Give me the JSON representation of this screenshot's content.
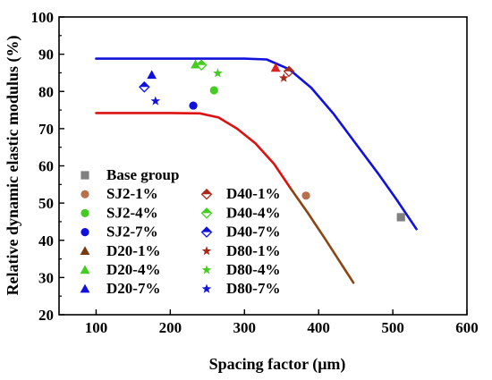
{
  "chart_data": {
    "type": "scatter",
    "xlabel": "Spacing factor (μm)",
    "ylabel": "Relative dynamic elastic modulus (%)",
    "xlim": [
      50,
      600
    ],
    "ylim": [
      20,
      100
    ],
    "xticks": [
      100,
      200,
      300,
      400,
      500,
      600
    ],
    "yticks": [
      20,
      30,
      40,
      50,
      60,
      70,
      80,
      90,
      100
    ],
    "grid": false,
    "legend_placement": "bottom-left, two columns",
    "series": [
      {
        "name": "Base group",
        "marker": "square",
        "filled": true,
        "color": "#808080",
        "points": [
          [
            511,
            46.2
          ]
        ]
      },
      {
        "name": "SJ2-1%",
        "marker": "circle",
        "filled": true,
        "color": "#b8704a",
        "points": [
          [
            383,
            52
          ]
        ]
      },
      {
        "name": "SJ2-4%",
        "marker": "circle",
        "filled": true,
        "color": "#44cc22",
        "points": [
          [
            259,
            80.3
          ]
        ]
      },
      {
        "name": "SJ2-7%",
        "marker": "circle",
        "filled": true,
        "color": "#1111dd",
        "points": [
          [
            231,
            76.2
          ]
        ]
      },
      {
        "name": "D20-1%",
        "marker": "triangle",
        "filled": true,
        "color": "#7a3a10",
        "points": []
      },
      {
        "name": "D20-4%",
        "marker": "triangle",
        "filled": true,
        "color": "#44cc22",
        "points": [
          [
            234,
            87.2
          ]
        ]
      },
      {
        "name": "D20-7%",
        "marker": "triangle",
        "filled": true,
        "color": "#1111dd",
        "points": [
          [
            175,
            84.4
          ]
        ]
      },
      {
        "name": "D40-1%",
        "marker": "diamond-half",
        "filled": false,
        "color": "#aa2a1a",
        "points": [
          [
            360,
            85.4
          ]
        ]
      },
      {
        "name": "D40-4%",
        "marker": "diamond-half",
        "filled": false,
        "color": "#44cc22",
        "points": [
          [
            242,
            87.1
          ]
        ]
      },
      {
        "name": "D40-7%",
        "marker": "diamond-half",
        "filled": false,
        "color": "#1111dd",
        "points": [
          [
            165,
            81.2
          ]
        ]
      },
      {
        "name": "D80-1%",
        "marker": "star",
        "filled": true,
        "color": "#aa2a1a",
        "points": [
          [
            353,
            83.6
          ]
        ]
      },
      {
        "name": "D80-4%",
        "marker": "star",
        "filled": true,
        "color": "#44cc22",
        "points": [
          [
            264,
            84.9
          ]
        ]
      },
      {
        "name": "D80-7%",
        "marker": "star",
        "filled": true,
        "color": "#1111dd",
        "points": [
          [
            180,
            77.4
          ]
        ]
      },
      {
        "name": "",
        "marker": "triangle",
        "filled": true,
        "color": "#dd2222",
        "points": [
          [
            342,
            86.3
          ]
        ]
      }
    ],
    "curves": [
      {
        "color": "#1111dd",
        "points": [
          [
            100,
            88.8
          ],
          [
            200,
            88.8
          ],
          [
            300,
            88.8
          ],
          [
            330,
            88.6
          ],
          [
            360,
            86
          ],
          [
            390,
            81
          ],
          [
            420,
            74
          ],
          [
            450,
            66
          ],
          [
            480,
            58
          ],
          [
            505,
            51
          ],
          [
            532,
            43
          ]
        ]
      },
      {
        "color": "#dd1111",
        "points": [
          [
            100,
            74.2
          ],
          [
            150,
            74.2
          ],
          [
            200,
            74.2
          ],
          [
            240,
            74.1
          ],
          [
            265,
            73
          ],
          [
            290,
            70
          ],
          [
            315,
            66
          ],
          [
            340,
            60.5
          ],
          [
            362,
            54
          ]
        ]
      },
      {
        "color": "#8b4513",
        "points": [
          [
            362,
            54
          ],
          [
            385,
            47.5
          ],
          [
            410,
            40
          ],
          [
            430,
            33.8
          ],
          [
            447,
            28.6
          ]
        ]
      }
    ]
  }
}
